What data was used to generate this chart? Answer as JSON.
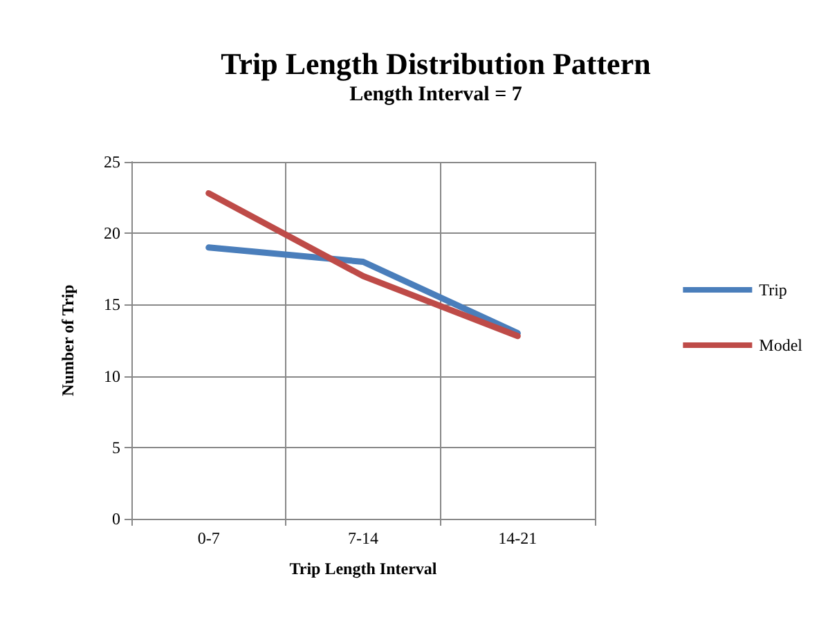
{
  "chart_data": {
    "type": "line",
    "title": "Trip Length Distribution Pattern",
    "subtitle": "Length Interval = 7",
    "xlabel": "Trip Length Interval",
    "ylabel": "Number of Trip",
    "categories": [
      "0-7",
      "7-14",
      "14-21"
    ],
    "series": [
      {
        "name": "Trip",
        "color": "#4a7ebb",
        "values": [
          19,
          18,
          13
        ]
      },
      {
        "name": "Model",
        "color": "#be4b48",
        "values": [
          22.8,
          17,
          12.8
        ]
      }
    ],
    "ylim": [
      0,
      25
    ],
    "yticks": [
      0,
      5,
      10,
      15,
      20,
      25
    ],
    "grid": true,
    "legend": "right",
    "marker": "none"
  }
}
